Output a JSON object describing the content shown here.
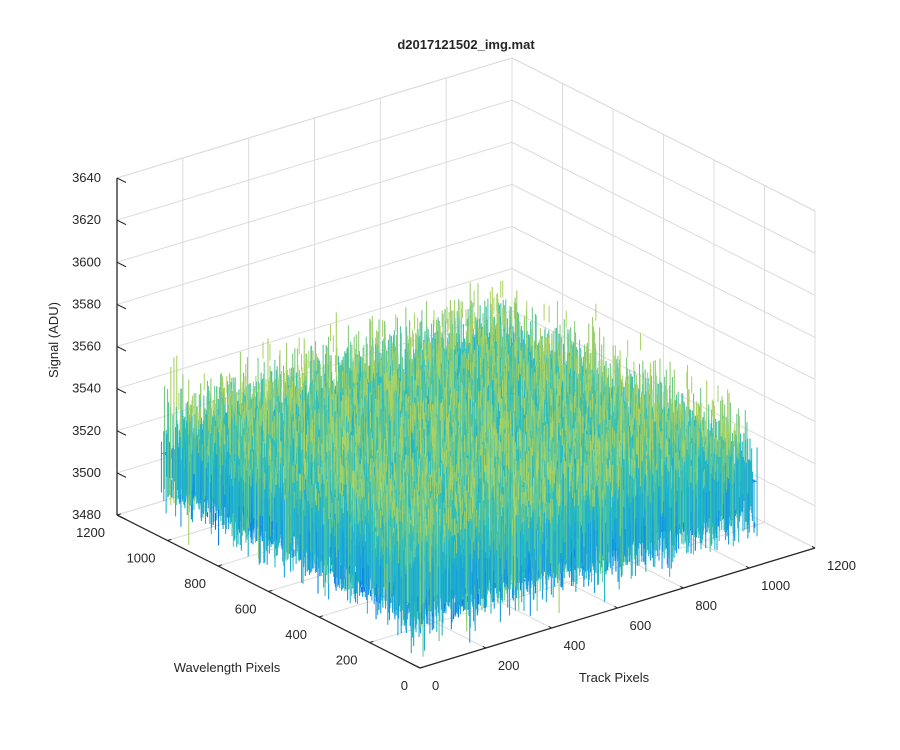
{
  "chart_data": {
    "type": "surface",
    "title": "d2017121502_img.mat",
    "xlabel": "Track Pixels",
    "ylabel": "Wavelength Pixels",
    "zlabel": "Signal (ADU)",
    "x_ticks": [
      "0",
      "200",
      "400",
      "600",
      "800",
      "1000",
      "1200"
    ],
    "y_ticks": [
      "0",
      "200",
      "400",
      "600",
      "800",
      "1000",
      "1200"
    ],
    "z_ticks": [
      "3480",
      "3500",
      "3520",
      "3540",
      "3560",
      "3580",
      "3600",
      "3620",
      "3640"
    ],
    "xlim": [
      0,
      1200
    ],
    "ylim": [
      0,
      1200
    ],
    "zlim": [
      3480,
      3640
    ],
    "data_extent": {
      "x": [
        0,
        1024
      ],
      "y": [
        0,
        1024
      ]
    },
    "signal_mean": 3520,
    "signal_range_typical": [
      3500,
      3580
    ],
    "grid": true,
    "colormap": "parula"
  }
}
